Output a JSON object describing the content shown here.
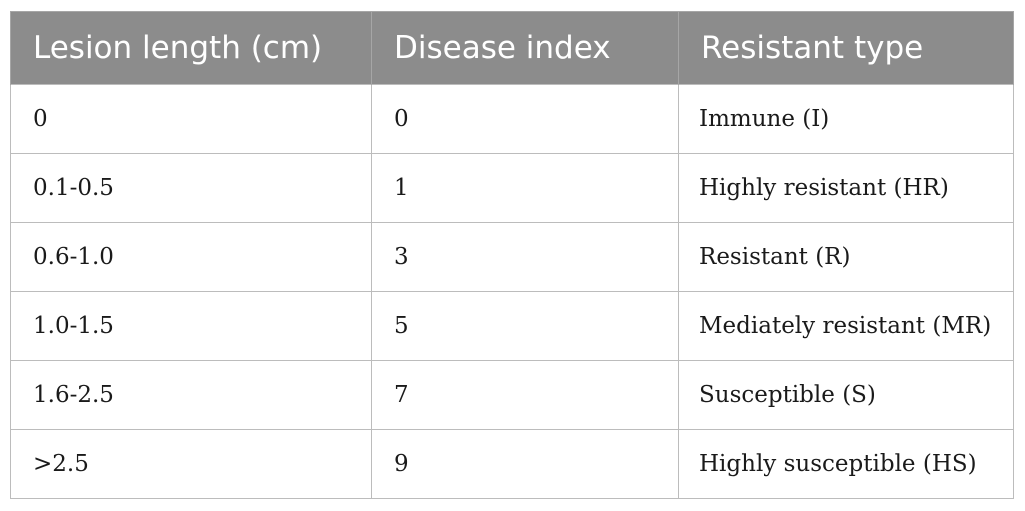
{
  "table": {
    "headers": [
      "Lesion length (cm)",
      "Disease index",
      "Resistant type"
    ],
    "rows": [
      [
        "0",
        "0",
        "Immune (I)"
      ],
      [
        "0.1-0.5",
        "1",
        "Highly resistant (HR)"
      ],
      [
        "0.6-1.0",
        "3",
        "Resistant (R)"
      ],
      [
        "1.0-1.5",
        "5",
        "Mediately resistant (MR)"
      ],
      [
        "1.6-2.5",
        "7",
        "Susceptible (S)"
      ],
      [
        ">2.5",
        "9",
        "Highly susceptible (HS)"
      ]
    ]
  },
  "colors": {
    "header_background": "#8c8c8c",
    "header_text": "#ffffff",
    "border": "#bcbcbc"
  }
}
